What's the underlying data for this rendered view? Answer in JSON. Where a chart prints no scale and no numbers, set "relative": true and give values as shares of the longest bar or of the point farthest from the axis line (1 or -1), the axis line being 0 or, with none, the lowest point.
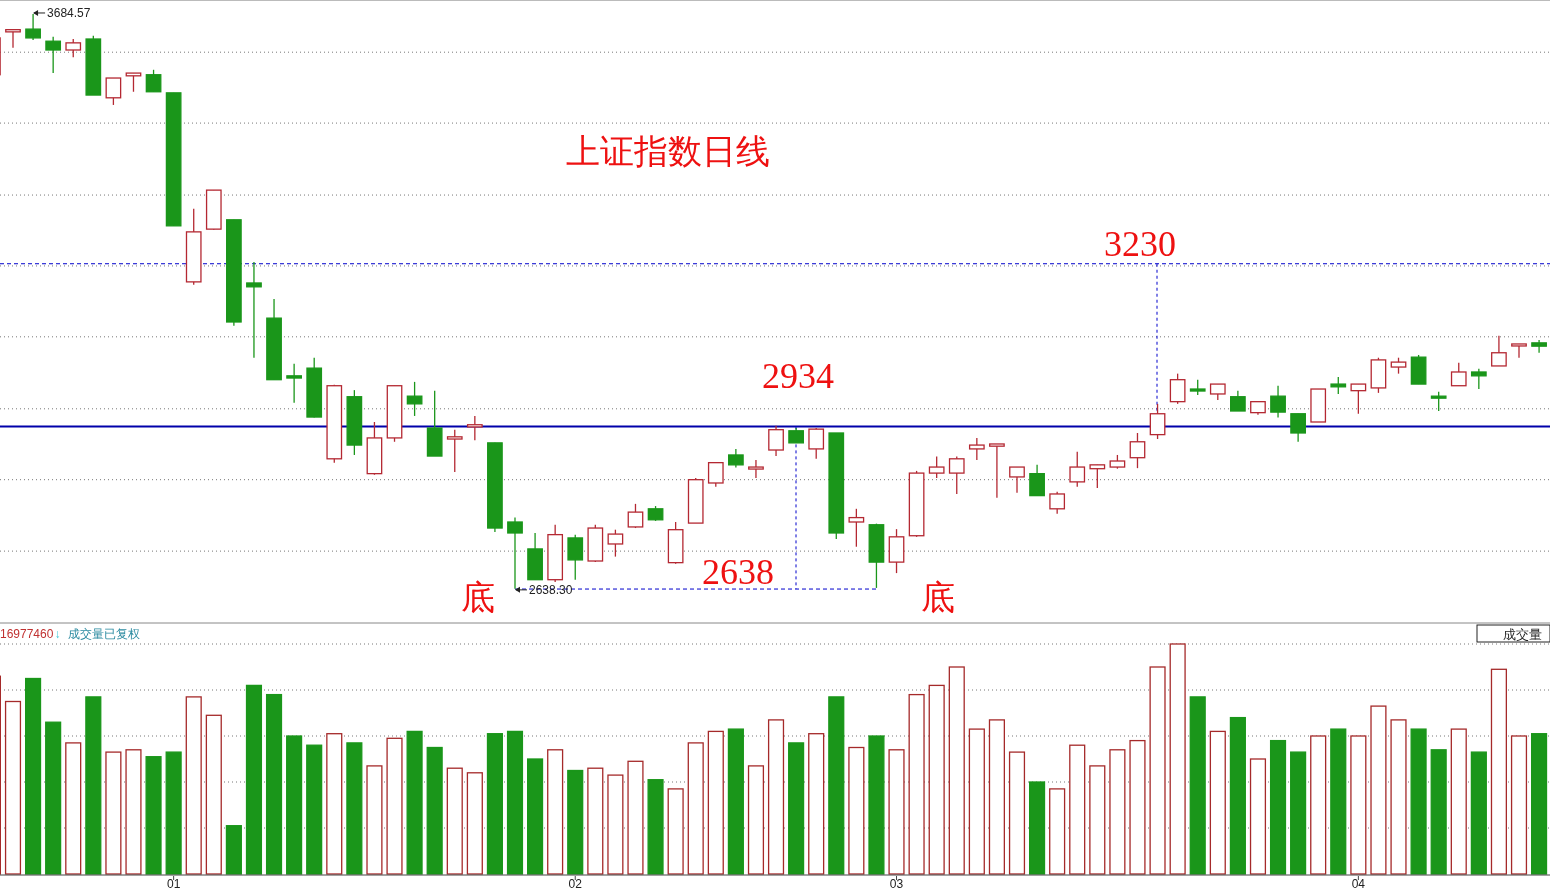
{
  "chart_data": [
    {
      "type": "candlestick",
      "title": "上证指数日线",
      "ohlc": [
        [
          3574,
          3656,
          3574,
          3641
        ],
        [
          3652,
          3656,
          3623,
          3656
        ],
        [
          3657,
          3684.57,
          3637,
          3641
        ],
        [
          3635,
          3643,
          3577,
          3619
        ],
        [
          3619,
          3639,
          3606,
          3632
        ],
        [
          3639,
          3645,
          3537,
          3537
        ],
        [
          3532,
          3568,
          3519,
          3568
        ],
        [
          3572,
          3577,
          3543,
          3577
        ],
        [
          3574,
          3583,
          3543,
          3543
        ],
        [
          3541,
          3541,
          3299,
          3299
        ],
        [
          3197,
          3330,
          3192,
          3288
        ],
        [
          3293,
          3364,
          3292,
          3364
        ],
        [
          3310,
          3310,
          3117,
          3124
        ],
        [
          3195,
          3233,
          3059,
          3188
        ],
        [
          3131,
          3166,
          3019,
          3019
        ],
        [
          3026,
          3048,
          2977,
          3022
        ],
        [
          3040,
          3059,
          2950,
          2951
        ],
        [
          2875,
          3010,
          2868,
          3008
        ],
        [
          2988,
          3000,
          2882,
          2900
        ],
        [
          2848,
          2942,
          2846,
          2913
        ],
        [
          2913,
          3008,
          2906,
          3008
        ],
        [
          2989,
          3015,
          2953,
          2975
        ],
        [
          2931,
          2999,
          2880,
          2880
        ],
        [
          2911,
          2928,
          2851,
          2915
        ],
        [
          2933,
          2953,
          2909,
          2937
        ],
        [
          2904,
          2904,
          2742,
          2749
        ],
        [
          2760,
          2768,
          2638.3,
          2740
        ],
        [
          2711,
          2740,
          2655,
          2655
        ],
        [
          2655,
          2755,
          2651,
          2737
        ],
        [
          2731,
          2737,
          2655,
          2691
        ],
        [
          2689,
          2755,
          2687,
          2749
        ],
        [
          2720,
          2746,
          2697,
          2738
        ],
        [
          2751,
          2793,
          2749,
          2778
        ],
        [
          2784,
          2789,
          2762,
          2764
        ],
        [
          2686,
          2760,
          2684,
          2746
        ],
        [
          2758,
          2840,
          2758,
          2837
        ],
        [
          2831,
          2869,
          2824,
          2868
        ],
        [
          2882,
          2893,
          2859,
          2864
        ],
        [
          2857,
          2873,
          2840,
          2860
        ],
        [
          2891,
          2935,
          2880,
          2928
        ],
        [
          2926,
          2931,
          2904,
          2904
        ],
        [
          2893,
          2931,
          2875,
          2929
        ],
        [
          2922,
          2922,
          2729,
          2740
        ],
        [
          2760,
          2784,
          2715,
          2768
        ],
        [
          2755,
          2757,
          2640,
          2687
        ],
        [
          2687,
          2747,
          2667,
          2733
        ],
        [
          2735,
          2853,
          2733,
          2849
        ],
        [
          2849,
          2879,
          2840,
          2860
        ],
        [
          2849,
          2879,
          2811,
          2875
        ],
        [
          2893,
          2913,
          2873,
          2900
        ],
        [
          2898,
          2902,
          2804,
          2902
        ],
        [
          2842,
          2860,
          2813,
          2860
        ],
        [
          2848,
          2864,
          2808,
          2808
        ],
        [
          2784,
          2815,
          2775,
          2811
        ],
        [
          2833,
          2888,
          2824,
          2860
        ],
        [
          2857,
          2864,
          2822,
          2864
        ],
        [
          2860,
          2882,
          2857,
          2871
        ],
        [
          2877,
          2922,
          2858,
          2906
        ],
        [
          2919,
          2975,
          2911,
          2957
        ],
        [
          2979,
          3030,
          2975,
          3019
        ],
        [
          3002,
          3019,
          2991,
          3000
        ],
        [
          2993,
          3011,
          2982,
          3011
        ],
        [
          2988,
          2999,
          2962,
          2962
        ],
        [
          2959,
          2979,
          2955,
          2979
        ],
        [
          2989,
          3008,
          2950,
          2960
        ],
        [
          2957,
          2957,
          2906,
          2922
        ],
        [
          2942,
          3002,
          2942,
          3002
        ],
        [
          3011,
          3024,
          2993,
          3006
        ],
        [
          2999,
          3011,
          2957,
          3011
        ],
        [
          3004,
          3059,
          2995,
          3055
        ],
        [
          3042,
          3059,
          3030,
          3051
        ],
        [
          3060,
          3064,
          3011,
          3011
        ],
        [
          2989,
          2997,
          2962,
          2986
        ],
        [
          3008,
          3050,
          3008,
          3033
        ],
        [
          3033,
          3039,
          3002,
          3026
        ],
        [
          3044,
          3099,
          3044,
          3068
        ],
        [
          3082,
          3084,
          3059,
          3084
        ],
        [
          3086,
          3091,
          3068,
          3080
        ]
      ],
      "ylim": [
        2578,
        3710
      ],
      "yticks": [
        {
          "value": 3615,
          "label": null
        },
        {
          "value": 3486,
          "label": null
        },
        {
          "value": 3355,
          "label": null
        },
        {
          "value": 3226,
          "label": null
        },
        {
          "value": 3097,
          "label": null
        },
        {
          "value": 2966,
          "label": null
        },
        {
          "value": 2837,
          "label": null
        },
        {
          "value": 2707,
          "label": null
        }
      ],
      "tick_labels": false,
      "grid": "y",
      "ref_lines": [
        {
          "axis": "y",
          "value": 3230,
          "label": "3230",
          "color": "#0000cc",
          "line_style": "dashed"
        },
        {
          "axis": "y",
          "value": 2934,
          "label": "2934",
          "color": "#0000aa",
          "line_style": "solid"
        },
        {
          "axis": "y",
          "value": 2638,
          "label": "2638",
          "color": "#0000cc",
          "line_style": "dashed"
        }
      ],
      "annotations": [
        "3684.57",
        "2638.30",
        "底",
        "底"
      ]
    },
    {
      "type": "bar",
      "relative": true,
      "categories": [
        null,
        null,
        null,
        null,
        null,
        null,
        null,
        null,
        null,
        "01",
        null,
        null,
        null,
        null,
        null,
        null,
        null,
        null,
        null,
        null,
        null,
        null,
        null,
        null,
        null,
        null,
        null,
        null,
        null,
        "02",
        null,
        null,
        null,
        null,
        null,
        null,
        null,
        null,
        null,
        null,
        null,
        null,
        null,
        null,
        null,
        "03",
        null,
        null,
        null,
        null,
        null,
        null,
        null,
        null,
        null,
        null,
        null,
        null,
        null,
        null,
        null,
        null,
        null,
        null,
        null,
        null,
        null,
        null,
        "04",
        null,
        null,
        null,
        null,
        null,
        null,
        null,
        null,
        null
      ],
      "values": [
        0.86,
        0.75,
        0.85,
        0.66,
        0.57,
        0.77,
        0.53,
        0.54,
        0.51,
        0.53,
        0.77,
        0.69,
        0.21,
        0.82,
        0.78,
        0.6,
        0.56,
        0.61,
        0.57,
        0.47,
        0.59,
        0.62,
        0.55,
        0.46,
        0.44,
        0.61,
        0.62,
        0.5,
        0.54,
        0.45,
        0.46,
        0.43,
        0.49,
        0.41,
        0.37,
        0.57,
        0.62,
        0.63,
        0.47,
        0.67,
        0.57,
        0.61,
        0.77,
        0.55,
        0.6,
        0.54,
        0.78,
        0.82,
        0.9,
        0.63,
        0.67,
        0.53,
        0.4,
        0.37,
        0.56,
        0.47,
        0.54,
        0.58,
        0.9,
        1,
        0.77,
        0.62,
        0.68,
        0.5,
        0.58,
        0.53,
        0.6,
        0.63,
        0.6,
        0.73,
        0.67,
        0.63,
        0.54,
        0.63,
        0.53,
        0.89,
        0.6,
        0.61
      ],
      "colors": [
        "#a52a2a",
        "#a52a2a",
        "#1a961a",
        "#1a961a",
        "#a52a2a",
        "#1a961a",
        "#a52a2a",
        "#a52a2a",
        "#1a961a",
        "#1a961a",
        "#a52a2a",
        "#a52a2a",
        "#1a961a",
        "#1a961a",
        "#1a961a",
        "#1a961a",
        "#1a961a",
        "#a52a2a",
        "#1a961a",
        "#a52a2a",
        "#a52a2a",
        "#1a961a",
        "#1a961a",
        "#a52a2a",
        "#a52a2a",
        "#1a961a",
        "#1a961a",
        "#1a961a",
        "#a52a2a",
        "#1a961a",
        "#a52a2a",
        "#a52a2a",
        "#a52a2a",
        "#1a961a",
        "#a52a2a",
        "#a52a2a",
        "#a52a2a",
        "#1a961a",
        "#a52a2a",
        "#a52a2a",
        "#1a961a",
        "#a52a2a",
        "#1a961a",
        "#a52a2a",
        "#1a961a",
        "#a52a2a",
        "#a52a2a",
        "#a52a2a",
        "#a52a2a",
        "#a52a2a",
        "#a52a2a",
        "#a52a2a",
        "#1a961a",
        "#a52a2a",
        "#a52a2a",
        "#a52a2a",
        "#a52a2a",
        "#a52a2a",
        "#a52a2a",
        "#a52a2a",
        "#1a961a",
        "#a52a2a",
        "#1a961a",
        "#a52a2a",
        "#1a961a",
        "#1a961a",
        "#a52a2a",
        "#1a961a",
        "#a52a2a",
        "#a52a2a",
        "#a52a2a",
        "#1a961a",
        "#1a961a",
        "#a52a2a",
        "#1a961a",
        "#a52a2a",
        "#a52a2a",
        "#1a961a"
      ],
      "grid": "y",
      "tick_labels": "x",
      "annotations": [
        "16977460",
        "↓",
        "成交量已复权",
        "成交量"
      ]
    }
  ]
}
